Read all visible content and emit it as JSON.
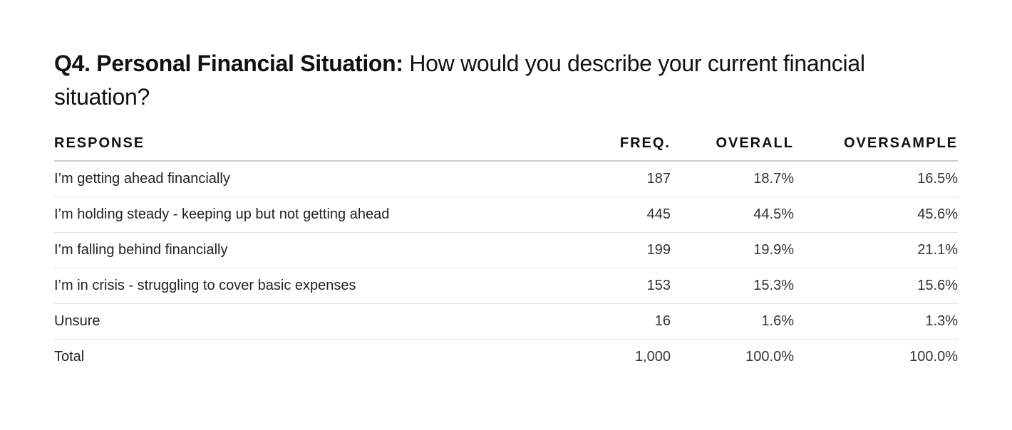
{
  "header": {
    "title_bold": "Q4. Personal Financial Situation:",
    "title_rest": "How would you describe your current financial situation?"
  },
  "table": {
    "columns": [
      "RESPONSE",
      "FREQ.",
      "OVERALL",
      "OVERSAMPLE"
    ],
    "rows": [
      [
        "I’m getting ahead financially",
        "187",
        "18.7%",
        "16.5%"
      ],
      [
        "I’m holding steady - keeping up but not getting ahead",
        "445",
        "44.5%",
        "45.6%"
      ],
      [
        "I’m falling behind financially",
        "199",
        "19.9%",
        "21.1%"
      ],
      [
        "I’m in crisis - struggling to cover basic expenses",
        "153",
        "15.3%",
        "15.6%"
      ],
      [
        "Unsure",
        "16",
        "1.6%",
        "1.3%"
      ],
      [
        "Total",
        "1,000",
        "100.0%",
        "100.0%"
      ]
    ]
  }
}
